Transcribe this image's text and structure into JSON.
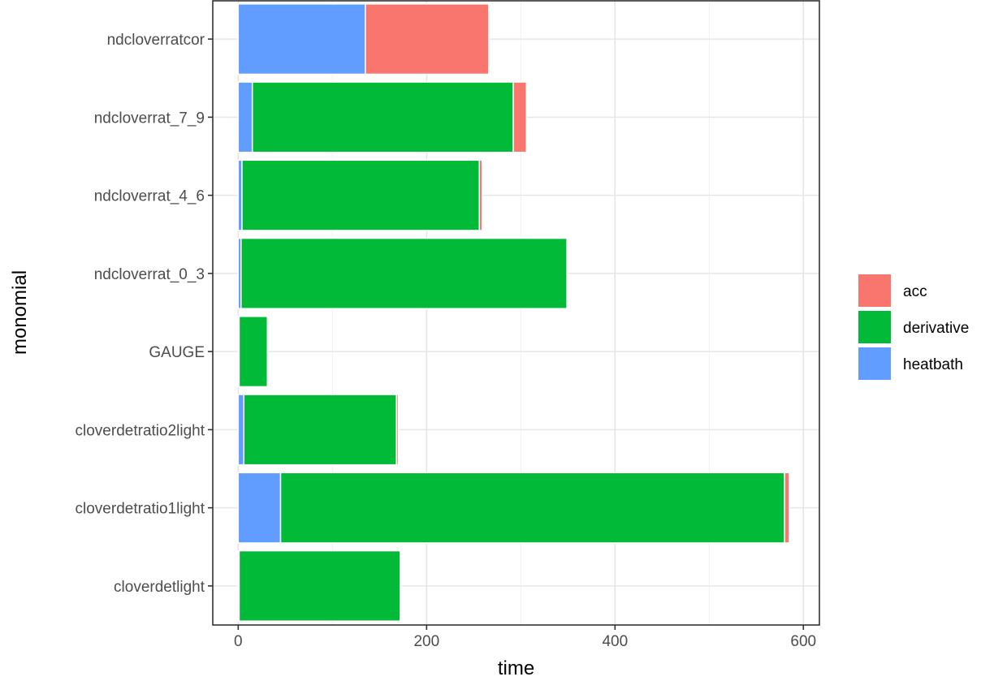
{
  "chart_data": {
    "type": "bar",
    "orientation": "horizontal",
    "stacked": true,
    "xlabel": "time",
    "ylabel": "monomial",
    "xlim": [
      -27,
      617
    ],
    "x_ticks": [
      0,
      200,
      400,
      600
    ],
    "x_minor_ticks": [
      100,
      300,
      500
    ],
    "grid": true,
    "legend_position": "right",
    "categories": [
      "ndcloverratcor",
      "ndcloverrat_7_9",
      "ndcloverrat_4_6",
      "ndcloverrat_0_3",
      "GAUGE",
      "cloverdetratio2light",
      "cloverdetratio1light",
      "cloverdetlight"
    ],
    "series": [
      {
        "name": "heatbath",
        "color": "#619CFF",
        "values": [
          135,
          15,
          4,
          3,
          1,
          6,
          45,
          1
        ]
      },
      {
        "name": "derivative",
        "color": "#00BA38",
        "values": [
          0,
          277,
          252,
          346,
          30,
          162,
          535,
          171
        ]
      },
      {
        "name": "acc",
        "color": "#F8766D",
        "values": [
          131,
          14,
          3,
          0,
          0,
          2,
          5,
          0
        ]
      }
    ],
    "legend": [
      "acc",
      "derivative",
      "heatbath"
    ]
  }
}
